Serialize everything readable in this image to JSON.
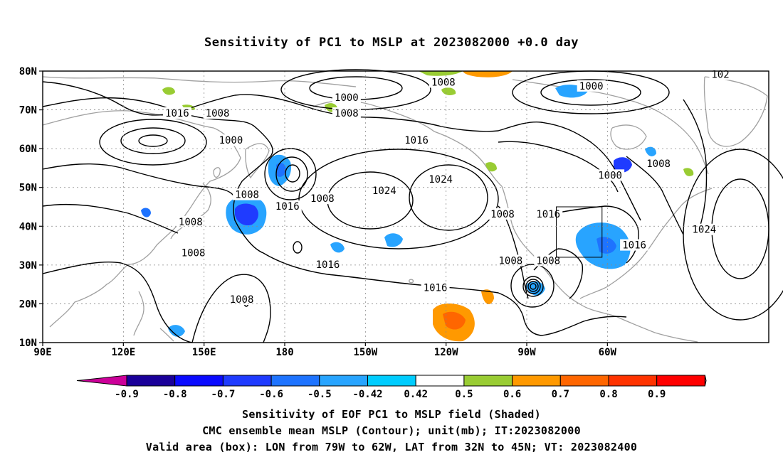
{
  "title": "Sensitivity of PC1 to MSLP at 2023082000 +0.0 day",
  "lat_labels": [
    "80N",
    "70N",
    "60N",
    "50N",
    "40N",
    "30N",
    "20N",
    "10N"
  ],
  "lon_labels": [
    "90E",
    "120E",
    "150E",
    "180",
    "150W",
    "120W",
    "90W",
    "60W"
  ],
  "colorbar": {
    "labels": [
      "-0.9",
      "-0.8",
      "-0.7",
      "-0.6",
      "-0.5",
      "-0.42",
      "0.42",
      "0.5",
      "0.6",
      "0.7",
      "0.8",
      "0.9"
    ],
    "colors": [
      "#1a0099",
      "#0a0aff",
      "#1f3bff",
      "#1e73ff",
      "#28a4ff",
      "#00ccff",
      "#ffffff",
      "#99cc33",
      "#ff9900",
      "#ff6600",
      "#ff3300",
      "#ff0000"
    ],
    "below_color": "#cc0099",
    "above_color": "#ff99cc"
  },
  "contour_labels": [
    {
      "text": "1016",
      "lon": 140,
      "lat": 69
    },
    {
      "text": "1008",
      "lon": 155,
      "lat": 69
    },
    {
      "text": "1000",
      "lon": 160,
      "lat": 62
    },
    {
      "text": "1000",
      "lon": 203,
      "lat": 73
    },
    {
      "text": "1008",
      "lon": 203,
      "lat": 69
    },
    {
      "text": "1008",
      "lon": 239,
      "lat": 77
    },
    {
      "text": "1000",
      "lon": 294,
      "lat": 76
    },
    {
      "text": "1016",
      "lon": 229,
      "lat": 62
    },
    {
      "text": "1024",
      "lon": 238,
      "lat": 52
    },
    {
      "text": "1024",
      "lon": 217,
      "lat": 49
    },
    {
      "text": "1008",
      "lon": 166,
      "lat": 48
    },
    {
      "text": "1016",
      "lon": 181,
      "lat": 45
    },
    {
      "text": "1008",
      "lon": 194,
      "lat": 47
    },
    {
      "text": "1008",
      "lon": 145,
      "lat": 41
    },
    {
      "text": "1008",
      "lon": 146,
      "lat": 33
    },
    {
      "text": "1016",
      "lon": 196,
      "lat": 30
    },
    {
      "text": "1008",
      "lon": 164,
      "lat": 21
    },
    {
      "text": "1016",
      "lon": 236,
      "lat": 24
    },
    {
      "text": "1008",
      "lon": 261,
      "lat": 43
    },
    {
      "text": "1016",
      "lon": 278,
      "lat": 43
    },
    {
      "text": "1008",
      "lon": 264,
      "lat": 31
    },
    {
      "text": "1008",
      "lon": 278,
      "lat": 31
    },
    {
      "text": "1000",
      "lon": 301,
      "lat": 53
    },
    {
      "text": "1008",
      "lon": 319,
      "lat": 56
    },
    {
      "text": "1016",
      "lon": 310,
      "lat": 35
    },
    {
      "text": "1024",
      "lon": 336,
      "lat": 39
    },
    {
      "text": "102",
      "lon": 342,
      "lat": 79
    }
  ],
  "valid_box": {
    "lon_min": 281,
    "lon_max": 298,
    "lat_min": 32,
    "lat_max": 45
  },
  "caption_line1": "Sensitivity of EOF PC1 to MSLP field (Shaded)",
  "caption_line2": "CMC ensemble mean MSLP (Contour); unit(mb); IT:2023082000",
  "caption_line3": "Valid area (box): LON from 79W to 62W, LAT from 32N to 45N; VT: 2023082400"
}
